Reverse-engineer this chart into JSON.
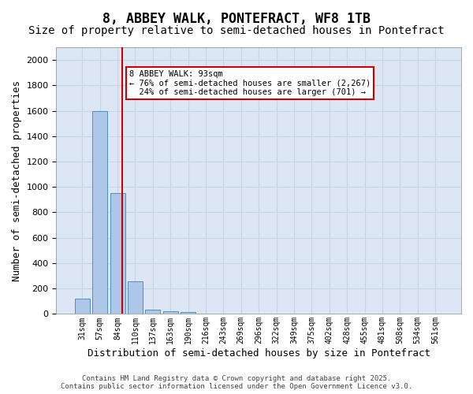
{
  "title": "8, ABBEY WALK, PONTEFRACT, WF8 1TB",
  "subtitle": "Size of property relative to semi-detached houses in Pontefract",
  "xlabel": "Distribution of semi-detached houses by size in Pontefract",
  "ylabel": "Number of semi-detached properties",
  "bin_labels": [
    "31sqm",
    "57sqm",
    "84sqm",
    "110sqm",
    "137sqm",
    "163sqm",
    "190sqm",
    "216sqm",
    "243sqm",
    "269sqm",
    "296sqm",
    "322sqm",
    "349sqm",
    "375sqm",
    "402sqm",
    "428sqm",
    "455sqm",
    "481sqm",
    "508sqm",
    "534sqm",
    "561sqm"
  ],
  "bar_values": [
    120,
    1600,
    950,
    260,
    35,
    22,
    15,
    0,
    0,
    0,
    0,
    0,
    0,
    0,
    0,
    0,
    0,
    0,
    0,
    0,
    0
  ],
  "bar_color": "#aec6e8",
  "bar_edge_color": "#4a90c4",
  "vline_color": "#cc0000",
  "annotation_text": "8 ABBEY WALK: 93sqm\n← 76% of semi-detached houses are smaller (2,267)\n  24% of semi-detached houses are larger (701) →",
  "annotation_box_color": "#ffffff",
  "annotation_box_edge": "#cc0000",
  "ylim": [
    0,
    2100
  ],
  "yticks": [
    0,
    200,
    400,
    600,
    800,
    1000,
    1200,
    1400,
    1600,
    1800,
    2000
  ],
  "grid_color": "#c8d4e8",
  "bg_color": "#dce6f5",
  "footer": "Contains HM Land Registry data © Crown copyright and database right 2025.\nContains public sector information licensed under the Open Government Licence v3.0.",
  "title_fontsize": 12,
  "subtitle_fontsize": 10,
  "xlabel_fontsize": 9,
  "ylabel_fontsize": 9,
  "tick_fontsize": 7,
  "footer_fontsize": 6.5
}
